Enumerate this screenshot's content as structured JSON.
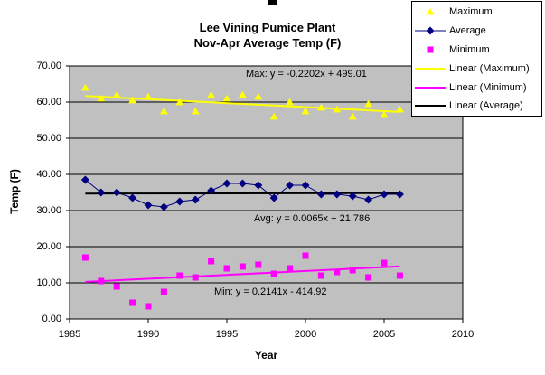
{
  "chart_data": {
    "type": "scatter",
    "title_line1": "Lee Vining Pumice Plant",
    "title_line2": "Nov-Apr Average Temp (F)",
    "xlabel": "Year",
    "ylabel": "Temp (F)",
    "xlim": [
      1985,
      2010
    ],
    "ylim": [
      0,
      70
    ],
    "plot_bg": "#C0C0C0",
    "gridlines": true,
    "x_ticks": [
      {
        "value": 1985,
        "label": "1985"
      },
      {
        "value": 1990,
        "label": "1990"
      },
      {
        "value": 1995,
        "label": "1995"
      },
      {
        "value": 2000,
        "label": "2000"
      },
      {
        "value": 2005,
        "label": "2005"
      },
      {
        "value": 2010,
        "label": "2010"
      }
    ],
    "y_ticks": [
      {
        "value": 70,
        "label": "70.00"
      },
      {
        "value": 60,
        "label": "60.00"
      },
      {
        "value": 50,
        "label": "50.00"
      },
      {
        "value": 40,
        "label": "40.00"
      },
      {
        "value": 30,
        "label": "30.00"
      },
      {
        "value": 20,
        "label": "20.00"
      },
      {
        "value": 10,
        "label": "10.00"
      },
      {
        "value": 0,
        "label": "0.00"
      }
    ],
    "years": [
      1986,
      1987,
      1988,
      1989,
      1990,
      1991,
      1992,
      1993,
      1994,
      1995,
      1996,
      1997,
      1998,
      1999,
      2000,
      2001,
      2002,
      2003,
      2004,
      2005,
      2006
    ],
    "series": [
      {
        "name": "Maximum",
        "marker": "triangle",
        "color": "#FFFF00",
        "line": false,
        "values": [
          64,
          61,
          62,
          60.5,
          61.5,
          57.5,
          60,
          57.5,
          62,
          61,
          62,
          61.5,
          56,
          60,
          57.5,
          58.5,
          58,
          56,
          59.5,
          56.5,
          58
        ]
      },
      {
        "name": "Average",
        "marker": "diamond",
        "color": "#000080",
        "line": true,
        "values": [
          38.5,
          35,
          35,
          33.5,
          31.5,
          31,
          32.5,
          33,
          35.5,
          37.5,
          37.5,
          37,
          33.5,
          37,
          37,
          34.5,
          34.5,
          34,
          33,
          34.5,
          34.5
        ]
      },
      {
        "name": "Minimum",
        "marker": "square",
        "color": "#FF00FF",
        "line": false,
        "values": [
          17,
          10.5,
          9,
          4.5,
          3.5,
          7.5,
          12,
          11.5,
          16,
          14,
          14.5,
          15,
          12.5,
          14,
          17.5,
          12,
          13,
          13.5,
          11.5,
          15.5,
          12
        ]
      }
    ],
    "trendlines": [
      {
        "name": "Linear (Maximum)",
        "color": "#FFFF00",
        "slope": -0.2202,
        "intercept": 499.01
      },
      {
        "name": "Linear (Minimum)",
        "color": "#FF00FF",
        "slope": 0.2141,
        "intercept": -414.92
      },
      {
        "name": "Linear (Average)",
        "color": "#000000",
        "slope": 0.0065,
        "intercept": 21.786
      }
    ],
    "annotations": {
      "max": "Max: y = -0.2202x + 499.01",
      "avg": "Avg: y = 0.0065x + 21.786",
      "min": "Min: y = 0.2141x - 414.92"
    },
    "legend": [
      {
        "label": "Maximum",
        "marker": "triangle",
        "color": "#FFFF00"
      },
      {
        "label": "Average",
        "marker": "diamond-line",
        "color": "#000080"
      },
      {
        "label": "Minimum",
        "marker": "square",
        "color": "#FF00FF"
      },
      {
        "label": "Linear (Maximum)",
        "marker": "line",
        "color": "#FFFF00"
      },
      {
        "label": "Linear (Minimum)",
        "marker": "line",
        "color": "#FF00FF"
      },
      {
        "label": "Linear (Average)",
        "marker": "line",
        "color": "#000000"
      }
    ]
  }
}
